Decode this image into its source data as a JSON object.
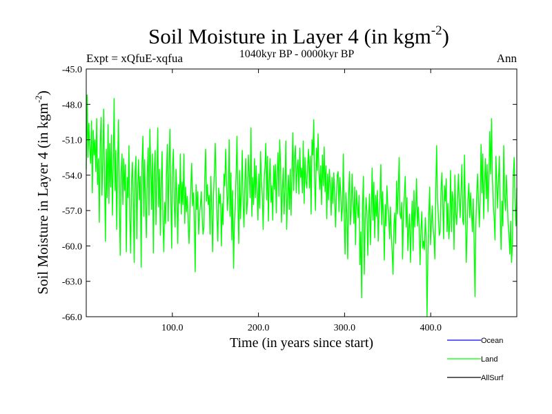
{
  "header": {
    "title_main": "Soil Moisture in Layer 4 (in kgm",
    "title_sup": "-2",
    "title_close": ")",
    "expt": "Expt = xQfuE-xqfua",
    "period": "1040kyr BP - 0000kyr BP",
    "season": "Ann"
  },
  "chart_data": {
    "type": "line",
    "title": "Soil Moisture in Layer 4 (in kgm-2)",
    "xlabel": "Time (in years since start)",
    "ylabel_main": "Soil Moisture in Layer 4 (in kgm",
    "ylabel_sup": "-2",
    "ylabel_close": ")",
    "xlim": [
      0,
      500
    ],
    "ylim": [
      -66,
      -45
    ],
    "x_ticks": [
      100,
      200,
      300,
      400
    ],
    "x_tick_labels": [
      "100.0",
      "200.0",
      "300.0",
      "400.0"
    ],
    "y_ticks": [
      -45,
      -48,
      -51,
      -54,
      -57,
      -60,
      -63,
      -66
    ],
    "y_tick_labels": [
      "-45.0",
      "-48.0",
      "-51.0",
      "-54.0",
      "-57.0",
      "-60.0",
      "-63.0",
      "-66.0"
    ],
    "legend": [
      "Ocean",
      "Land",
      "AllSurf"
    ],
    "series": [
      {
        "name": "Ocean",
        "color": "#0000ff",
        "values": []
      },
      {
        "name": "Land",
        "color": "#00ff00",
        "values": [
          -53.5,
          -47.2,
          -52.5,
          -49.6,
          -51.8,
          -53.0,
          -49.4,
          -55.5,
          -50.2,
          -52.3,
          -51.0,
          -53.7,
          -49.2,
          -54.8,
          -52.6,
          -58.0,
          -51.4,
          -49.1,
          -55.7,
          -52.9,
          -48.4,
          -54.2,
          -59.6,
          -51.8,
          -55.9,
          -49.7,
          -56.4,
          -51.3,
          -55.0,
          -50.6,
          -57.4,
          -53.2,
          -47.5,
          -55.3,
          -51.9,
          -58.6,
          -53.2,
          -49.3,
          -56.7,
          -60.8,
          -53.8,
          -52.2,
          -56.5,
          -52.6,
          -55.3,
          -53.1,
          -60.5,
          -54.2,
          -55.9,
          -51.5,
          -57.6,
          -60.6,
          -54.5,
          -52.9,
          -56.2,
          -61.4,
          -53.8,
          -52.4,
          -59.4,
          -55.0,
          -52.7,
          -56.1,
          -54.1,
          -61.8,
          -53.0,
          -50.7,
          -57.5,
          -52.7,
          -56.3,
          -59.3,
          -54.0,
          -51.7,
          -57.4,
          -50.1,
          -53.4,
          -56.9,
          -52.2,
          -60.6,
          -53.8,
          -51.9,
          -58.2,
          -54.2,
          -50.0,
          -56.7,
          -53.5,
          -59.1,
          -54.8,
          -52.0,
          -57.8,
          -60.5,
          -56.3,
          -58.1,
          -54.0,
          -51.4,
          -57.9,
          -53.5,
          -50.1,
          -55.6,
          -60.2,
          -53.4,
          -51.8,
          -56.6,
          -58.4,
          -53.5,
          -55.7,
          -59.8,
          -54.8,
          -56.4,
          -52.2,
          -57.3,
          -54.6,
          -56.5,
          -52.2,
          -58.1,
          -55.0,
          -57.1,
          -55.8,
          -58.2,
          -59.8,
          -57.1,
          -54.9,
          -53.0,
          -56.6,
          -55.5,
          -57.8,
          -62.2,
          -54.8,
          -56.9,
          -55.4,
          -59.0,
          -57.4,
          -56.5,
          -55.4,
          -57.6,
          -59.0,
          -58.4,
          -54.1,
          -51.8,
          -56.2,
          -54.8,
          -56.5,
          -55.7,
          -59.0,
          -54.1,
          -56.9,
          -60.5,
          -55.7,
          -53.7,
          -51.3,
          -54.5,
          -57.7,
          -59.6,
          -55.1,
          -56.4,
          -55.6,
          -60.0,
          -56.4,
          -58.2,
          -53.9,
          -54.9,
          -51.8,
          -54.7,
          -57.0,
          -55.5,
          -51.0,
          -57.5,
          -53.8,
          -59.5,
          -55.3,
          -61.9,
          -58.1,
          -56.4,
          -53.8,
          -50.7,
          -56.5,
          -59.8,
          -53.6,
          -57.7,
          -55.5,
          -51.9,
          -56.5,
          -58.4,
          -54.5,
          -52.6,
          -57.3,
          -56.3,
          -52.3,
          -53.8,
          -55.9,
          -50.0,
          -57.5,
          -54.2,
          -56.5,
          -52.6,
          -55.9,
          -53.2,
          -55.5,
          -57.8,
          -53.9,
          -56.8,
          -52.0,
          -54.4,
          -55.7,
          -58.6,
          -54.4,
          -53.4,
          -51.3,
          -56.1,
          -52.4,
          -57.9,
          -54.5,
          -52.6,
          -56.3,
          -54.9,
          -57.8,
          -53.2,
          -55.2,
          -53.1,
          -57.2,
          -53.9,
          -52.1,
          -55.8,
          -51.0,
          -53.3,
          -58.0,
          -55.4,
          -53.4,
          -57.3,
          -55.3,
          -51.1,
          -58.6,
          -55.7,
          -54.0,
          -56.9,
          -53.5,
          -57.4,
          -54.0,
          -50.4,
          -55.3,
          -52.6,
          -51.5,
          -55.5,
          -53.4,
          -52.7,
          -55.6,
          -51.7,
          -54.2,
          -53.4,
          -55.5,
          -51.1,
          -56.4,
          -52.5,
          -54.5,
          -55.1,
          -53.2,
          -51.8,
          -55.1,
          -52.4,
          -57.3,
          -51.0,
          -52.3,
          -49.3,
          -54.4,
          -57.0,
          -51.7,
          -53.6,
          -50.5,
          -53.8,
          -55.2,
          -53.2,
          -56.5,
          -52.3,
          -54.9,
          -51.6,
          -55.4,
          -53.2,
          -57.7,
          -53.9,
          -56.1,
          -53.5,
          -54.9,
          -57.4,
          -54.2,
          -56.4,
          -53.8,
          -55.6,
          -58.4,
          -56.0,
          -54.0,
          -53.7,
          -57.1,
          -54.2,
          -55.5,
          -57.9,
          -56.7,
          -52.2,
          -57.7,
          -60.7,
          -55.5,
          -57.3,
          -61.1,
          -55.7,
          -53.7,
          -58.2,
          -57.0,
          -53.9,
          -56.2,
          -58.1,
          -55.0,
          -59.9,
          -55.3,
          -56.6,
          -57.6,
          -55.7,
          -61.6,
          -58.8,
          -64.4,
          -56.5,
          -54.1,
          -62.4,
          -58.1,
          -55.9,
          -57.1,
          -60.8,
          -57.5,
          -55.6,
          -59.9,
          -57.2,
          -53.4,
          -57.8,
          -54.6,
          -59.3,
          -55.7,
          -57.5,
          -55.3,
          -59.6,
          -57.2,
          -55.9,
          -53.1,
          -58.2,
          -55.4,
          -57.5,
          -61.2,
          -56.5,
          -58.3,
          -54.9,
          -56.6,
          -57.5,
          -59.4,
          -56.7,
          -58.9,
          -60.6,
          -62.4,
          -58.2,
          -57.2,
          -59.8,
          -54.5,
          -57.3,
          -55.3,
          -52.5,
          -57.3,
          -57.7,
          -56.3,
          -61.1,
          -57.2,
          -55.7,
          -54.1,
          -58.4,
          -55.9,
          -60.4,
          -58.6,
          -57.3,
          -61.4,
          -58.2,
          -56.2,
          -60.4,
          -55.3,
          -58.4,
          -56.8,
          -54.3,
          -58.3,
          -56.7,
          -58.2,
          -61.6,
          -58.7,
          -57.1,
          -60.2,
          -59.6,
          -60.3,
          -57.6,
          -59.1,
          -66.0,
          -60.7,
          -57.4,
          -55.0,
          -59.9,
          -58.1,
          -56.6,
          -58.5,
          -59.4,
          -61.1,
          -55.3,
          -51.5,
          -56.1,
          -57.5,
          -59.1,
          -58.8,
          -55.4,
          -53.8,
          -56.2,
          -59.4,
          -54.9,
          -56.2,
          -54.3,
          -58.8,
          -56.4,
          -59.4,
          -58.1,
          -53.6,
          -58.8,
          -55.4,
          -56.1,
          -60.3,
          -54.0,
          -57.3,
          -58.2,
          -56.2,
          -53.9,
          -56.0,
          -57.6,
          -55.3,
          -53.1,
          -57.9,
          -58.2,
          -52.3,
          -56.8,
          -61.4,
          -58.7,
          -55.9,
          -54.7,
          -57.6,
          -55.5,
          -57.1,
          -58.8,
          -56.0,
          -59.6,
          -64.3,
          -58.3,
          -55.7,
          -53.9,
          -56.2,
          -58.4,
          -55.9,
          -51.4,
          -55.5,
          -52.2,
          -57.7,
          -54.6,
          -52.6,
          -56.0,
          -53.1,
          -57.1,
          -54.0,
          -50.3,
          -53.9,
          -49.2,
          -54.3,
          -56.5,
          -57.6,
          -59.5,
          -52.4,
          -54.5,
          -56.8,
          -54.4,
          -52.4,
          -57.4,
          -60.3,
          -56.2,
          -58.3,
          -51.5,
          -55.8,
          -57.0,
          -54.0,
          -56.0,
          -58.1,
          -59.0,
          -60.7,
          -57.9,
          -61.4,
          -59.8,
          -54.0,
          -52.5,
          -56.3,
          -58.3,
          -55.1
        ]
      },
      {
        "name": "AllSurf",
        "color": "#000000",
        "values": []
      }
    ]
  }
}
